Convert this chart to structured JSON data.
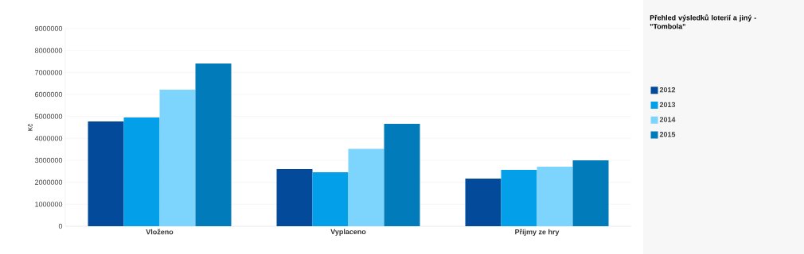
{
  "chart_data": {
    "type": "bar",
    "legend_title": "Přehled výsledků loterií a jiný - \"Tombola\"",
    "ylabel": "Kč",
    "categories": [
      "Vloženo",
      "Vyplaceno",
      "Příjmy ze hry"
    ],
    "series": [
      {
        "name": "2012",
        "color": "#034b9a",
        "values": [
          4770000,
          2600000,
          2170000
        ]
      },
      {
        "name": "2013",
        "color": "#039fe8",
        "values": [
          4950000,
          2460000,
          2570000
        ]
      },
      {
        "name": "2014",
        "color": "#7dd5fd",
        "values": [
          6220000,
          3520000,
          2710000
        ]
      },
      {
        "name": "2015",
        "color": "#017bb9",
        "values": [
          7410000,
          4660000,
          3000000
        ]
      }
    ],
    "ylim": [
      0,
      9000000
    ],
    "yticks": [
      0,
      1000000,
      2000000,
      3000000,
      4000000,
      5000000,
      6000000,
      7000000,
      8000000,
      9000000
    ],
    "grid": "y",
    "legend": "right"
  }
}
